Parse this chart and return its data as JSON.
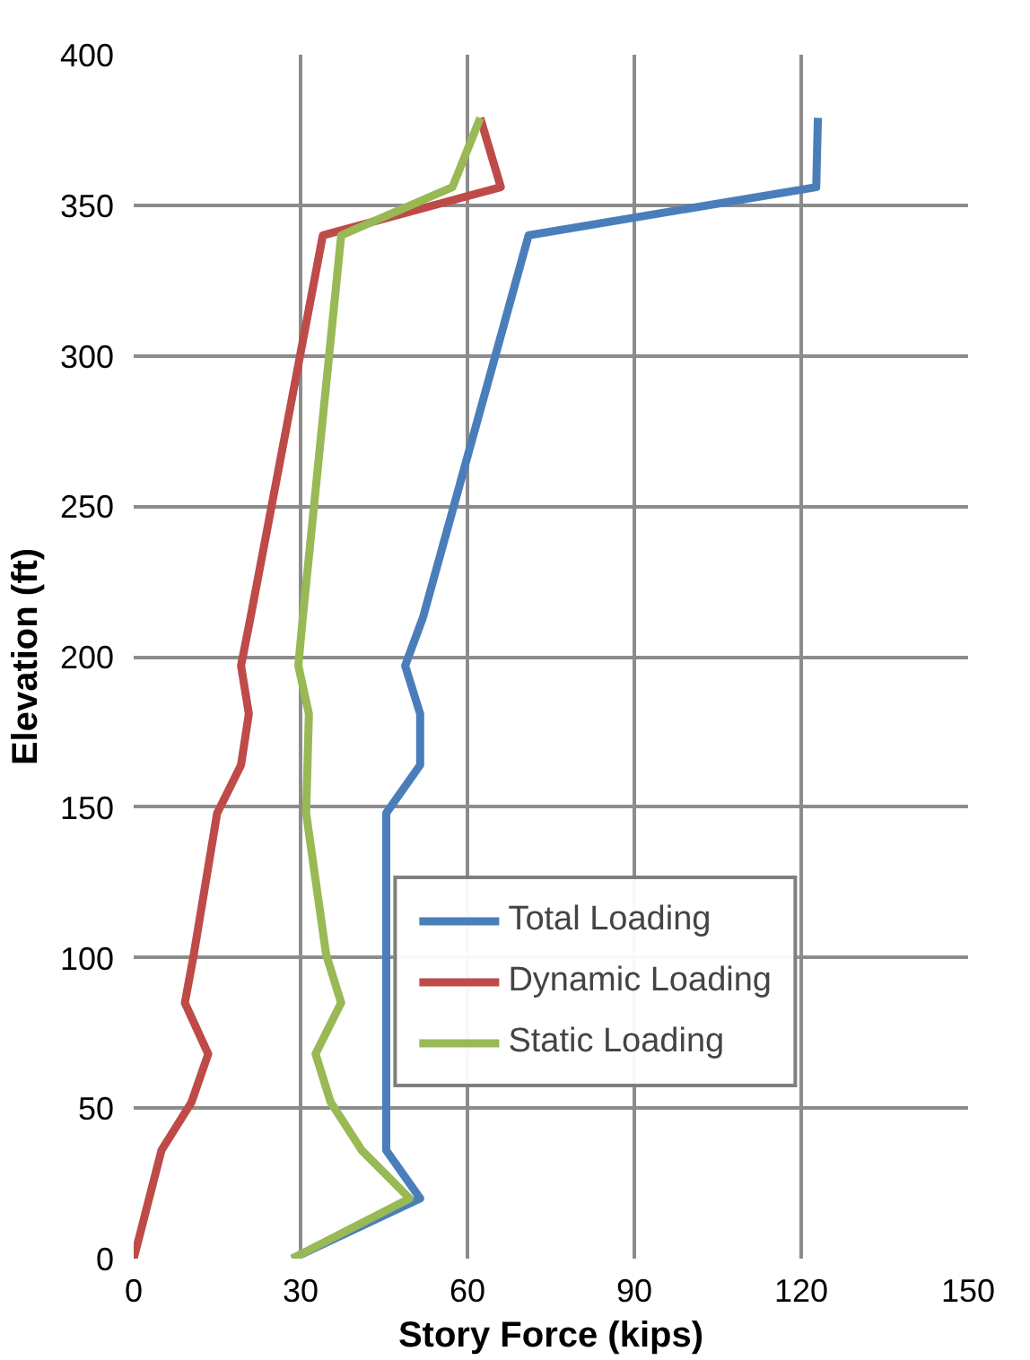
{
  "chart_data": {
    "type": "line",
    "xlabel": "Story Force (kips)",
    "ylabel": "Elevation (ft)",
    "xlim": [
      0,
      150
    ],
    "xticks": [
      0,
      30,
      60,
      90,
      120,
      150
    ],
    "ylim": [
      0,
      400
    ],
    "yticks": [
      0,
      50,
      100,
      150,
      200,
      250,
      300,
      350,
      400
    ],
    "grid": true,
    "legend": "bottom right",
    "marker": "none",
    "line_style": "solid",
    "series": [
      {
        "name": "Total Loading",
        "color": "#4a7ebb",
        "x": [
          28.5,
          51.5,
          45.4,
          45.4,
          45.4,
          45.4,
          45.4,
          45.4,
          51.5,
          51.5,
          48.8,
          52,
          71,
          122.7,
          123
        ],
        "values": [
          0,
          20,
          36,
          52,
          68,
          85,
          101,
          148,
          164,
          181,
          197,
          213,
          340,
          356,
          379
        ]
      },
      {
        "name": "Dynamic Loading",
        "color": "#be4b48",
        "x": [
          0,
          5,
          10.4,
          13.4,
          9.2,
          10.8,
          15,
          19.3,
          20.7,
          19.3,
          21,
          34,
          66,
          62.3
        ],
        "values": [
          0,
          36,
          52,
          68,
          85,
          101,
          148,
          164,
          181,
          197,
          213,
          340,
          356,
          379
        ]
      },
      {
        "name": "Static Loading",
        "color": "#98b954",
        "x": [
          28.5,
          49.6,
          41,
          35.4,
          32.7,
          37.3,
          34.6,
          31,
          31.5,
          29.6,
          30.4,
          37.3,
          57.3,
          62.3
        ],
        "values": [
          0,
          20,
          36,
          52,
          68,
          85,
          101,
          148,
          181,
          197,
          213,
          340,
          356,
          379
        ]
      }
    ]
  }
}
